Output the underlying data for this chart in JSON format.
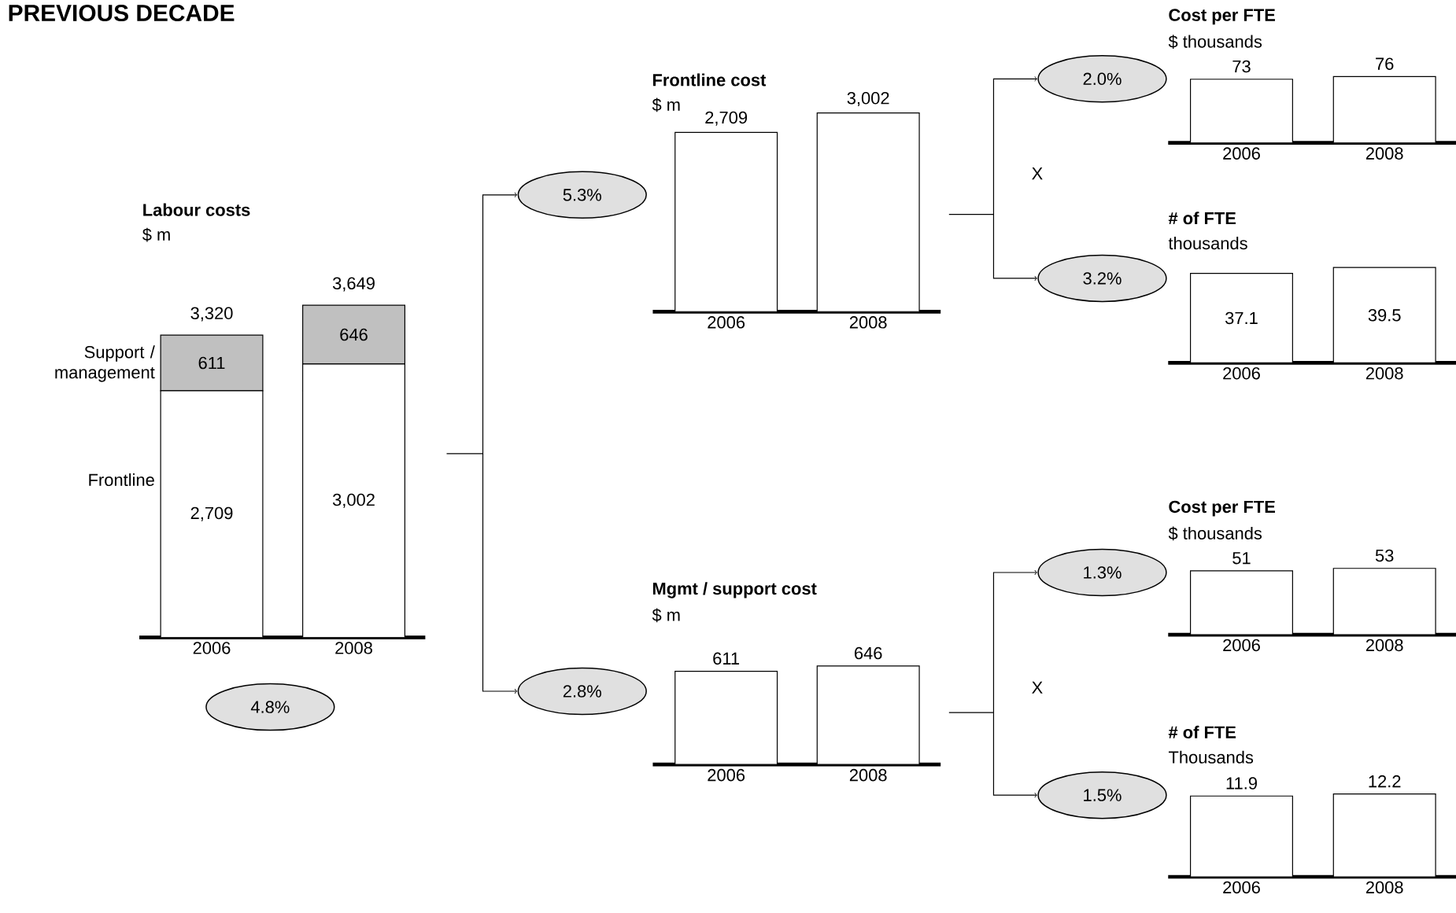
{
  "chart_data": [
    {
      "type": "bar",
      "title": "Labour costs",
      "subtitle": "$ m",
      "categories": [
        "2006",
        "2008"
      ],
      "stacked": true,
      "series": [
        {
          "name": "Frontline",
          "color": "#ffffff",
          "values": [
            2709,
            3002
          ],
          "value_labels": [
            "2,709",
            "3,002"
          ]
        },
        {
          "name": "Support / management",
          "color": "#c0c0c0",
          "values": [
            611,
            646
          ],
          "value_labels": [
            "611",
            "646"
          ]
        }
      ],
      "totals": [
        "3,320",
        "3,649"
      ],
      "annotations": [
        "PREVIOUS DECADE",
        "4.8%"
      ]
    },
    {
      "type": "bar",
      "title": "Frontline cost",
      "subtitle": "$ m",
      "categories": [
        "2006",
        "2008"
      ],
      "color": "#ffffff",
      "values": [
        2709,
        3002
      ],
      "value_labels": [
        "2,709",
        "3,002"
      ],
      "annotations": [
        "5.3%"
      ]
    },
    {
      "type": "bar",
      "title": "Mgmt / support cost",
      "subtitle": "$ m",
      "categories": [
        "2006",
        "2008"
      ],
      "color": "#ffffff",
      "values": [
        611,
        646
      ],
      "data_labels": true,
      "annotations": [
        "2.8%"
      ]
    },
    {
      "type": "bar",
      "title": "Cost per FTE",
      "subtitle": "$ thousands",
      "categories": [
        "2006",
        "2008"
      ],
      "color": "#ffffff",
      "values": [
        73,
        76
      ],
      "data_labels": true,
      "annotations": [
        "2.0%",
        "X"
      ]
    },
    {
      "type": "bar",
      "title": "# of FTE",
      "subtitle": "thousands",
      "categories": [
        "2006",
        "2008"
      ],
      "color": "#ffffff",
      "values": [
        37.1,
        39.5
      ],
      "data_labels": true,
      "annotations": [
        "3.2%"
      ]
    },
    {
      "type": "bar",
      "title": "Cost per FTE",
      "subtitle": "$ thousands",
      "categories": [
        "2006",
        "2008"
      ],
      "color": "#ffffff",
      "values": [
        51,
        53
      ],
      "data_labels": true,
      "annotations": [
        "1.3%",
        "X"
      ]
    },
    {
      "type": "bar",
      "title": "# of FTE",
      "subtitle": "Thousands",
      "categories": [
        "2006",
        "2008"
      ],
      "color": "#ffffff",
      "values": [
        11.9,
        12.2
      ],
      "data_labels": true,
      "annotations": [
        "1.5%"
      ]
    }
  ]
}
